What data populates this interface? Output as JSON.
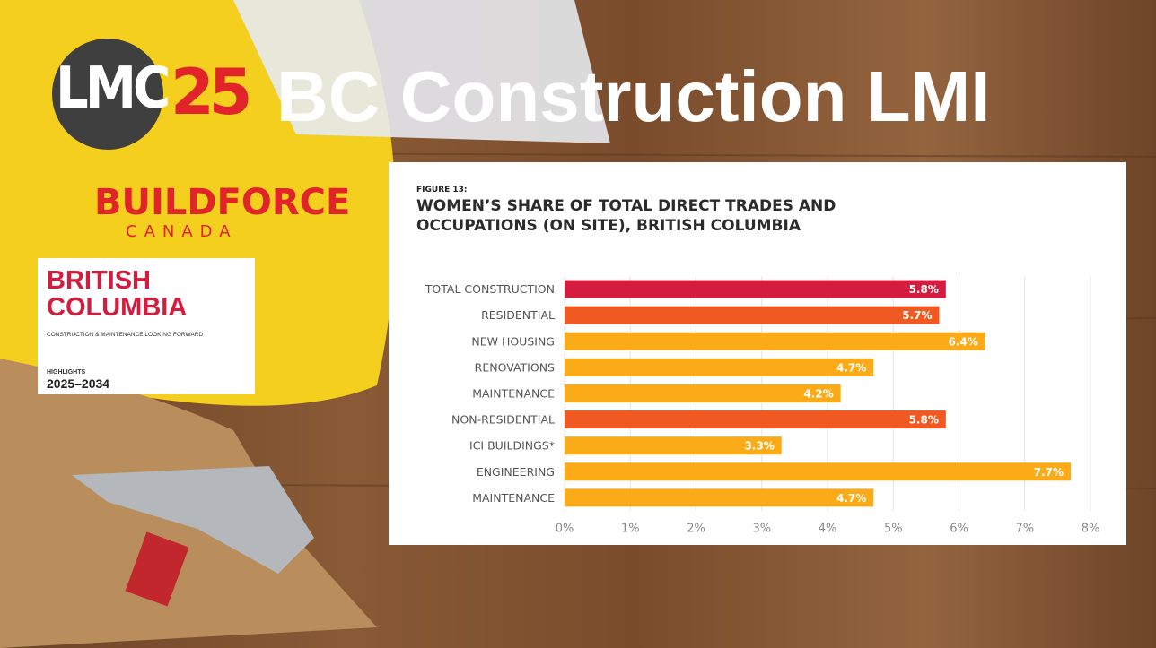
{
  "slide": {
    "logo_left": "LMC",
    "logo_right": "25",
    "title": "BC Construction LMI",
    "brand": "BUILDFORCE",
    "brand_sub": "CANADA",
    "report_title_1": "BRITISH",
    "report_title_2": "COLUMBIA",
    "report_subtitle": "CONSTRUCTION & MAINTENANCE LOOKING FORWARD",
    "report_kicker": "HIGHLIGHTS",
    "report_years": "2025–2034"
  },
  "chart_data": {
    "type": "hbar",
    "subtitle": "FIGURE 13:",
    "title": "WOMEN’S SHARE OF TOTAL DIRECT TRADES AND OCCUPATIONS (ON SITE), BRITISH COLUMBIA",
    "categories": [
      "TOTAL CONSTRUCTION",
      "RESIDENTIAL",
      "NEW HOUSING",
      "RENOVATIONS",
      "MAINTENANCE",
      "NON-RESIDENTIAL",
      "ICI BUILDINGS*",
      "ENGINEERING",
      "MAINTENANCE"
    ],
    "values": [
      5.8,
      5.7,
      6.4,
      4.7,
      4.2,
      5.8,
      3.3,
      7.7,
      4.7
    ],
    "value_labels": [
      "5.8%",
      "5.7%",
      "6.4%",
      "4.7%",
      "4.2%",
      "5.8%",
      "3.3%",
      "7.7%",
      "4.7%"
    ],
    "colors": [
      "#d41c3f",
      "#f05a22",
      "#fbab18",
      "#fbab18",
      "#fbab18",
      "#f05a22",
      "#fbab18",
      "#fbab18",
      "#fbab18"
    ],
    "xlim": [
      0,
      8
    ],
    "xticks": [
      {
        "value": 0,
        "label": "0%"
      },
      {
        "value": 1,
        "label": "1%"
      },
      {
        "value": 2,
        "label": "2%"
      },
      {
        "value": 3,
        "label": "3%"
      },
      {
        "value": 4,
        "label": "4%"
      },
      {
        "value": 5,
        "label": "5%"
      },
      {
        "value": 6,
        "label": "6%"
      },
      {
        "value": 7,
        "label": "7%"
      },
      {
        "value": 8,
        "label": "8%"
      }
    ],
    "grid": true
  }
}
